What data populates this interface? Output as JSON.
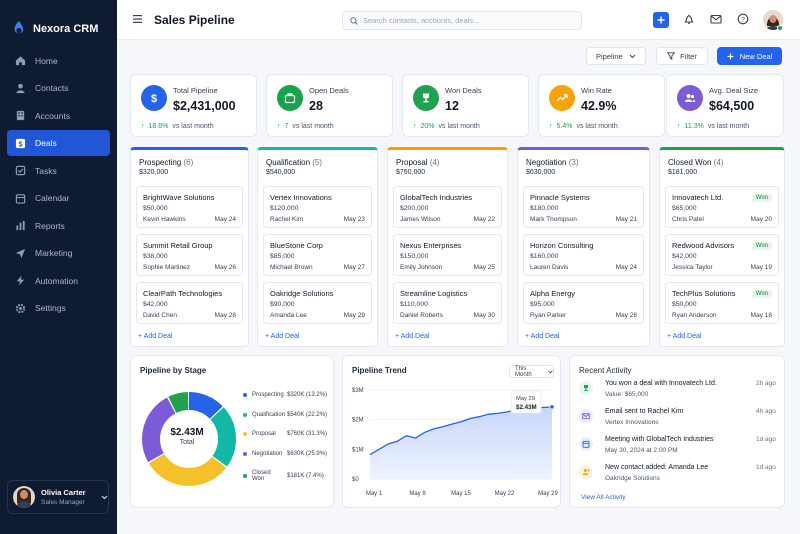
{
  "app": {
    "name": "Nexora CRM"
  },
  "nav": [
    {
      "label": "Home",
      "icon": "home-icon"
    },
    {
      "label": "Contacts",
      "icon": "user-icon"
    },
    {
      "label": "Accounts",
      "icon": "building-icon"
    },
    {
      "label": "Deals",
      "icon": "dollar-icon",
      "active": true
    },
    {
      "label": "Tasks",
      "icon": "check-square-icon"
    },
    {
      "label": "Calendar",
      "icon": "calendar-icon"
    },
    {
      "label": "Reports",
      "icon": "bar-chart-icon"
    },
    {
      "label": "Marketing",
      "icon": "send-icon"
    },
    {
      "label": "Automation",
      "icon": "zap-icon"
    },
    {
      "label": "Settings",
      "icon": "gear-icon"
    }
  ],
  "user": {
    "name": "Olivia Carter",
    "role": "Sales Manager"
  },
  "header": {
    "title": "Sales Pipeline",
    "search_placeholder": "Search contacts, accounts, deals..."
  },
  "toolbar": {
    "pipeline_label": "Pipeline",
    "filter_label": "Filter",
    "new_deal_label": "New Deal"
  },
  "kpis": [
    {
      "label": "Total Pipeline",
      "value": "$2,431,000",
      "change": "18.6%",
      "suffix": "vs last month",
      "color": "#2563eb",
      "icon": "dollar-icon"
    },
    {
      "label": "Open Deals",
      "value": "28",
      "change": "7",
      "suffix": "vs last month",
      "color": "#16a34a",
      "icon": "briefcase-icon"
    },
    {
      "label": "Won Deals",
      "value": "12",
      "change": "20%",
      "suffix": "vs last month",
      "color": "#22a150",
      "icon": "trophy-icon"
    },
    {
      "label": "Win Rate",
      "value": "42.9%",
      "change": "5.4%",
      "suffix": "vs last month",
      "color": "#f5a30b",
      "icon": "trend-icon"
    },
    {
      "label": "Avg. Deal Size",
      "value": "$64,500",
      "change": "11.3%",
      "suffix": "vs last month",
      "color": "#7c5cd6",
      "icon": "users-icon"
    }
  ],
  "stages": [
    {
      "name": "Prospecting",
      "count": "(6)",
      "amount": "$320,000",
      "color": "#2563eb",
      "deals": [
        {
          "name": "BrightWave Solutions",
          "value": "$50,000",
          "owner": "Kevin Hawkins",
          "date": "May 24"
        },
        {
          "name": "Summit Retail Group",
          "value": "$38,000",
          "owner": "Sophie Martinez",
          "date": "May 26"
        },
        {
          "name": "ClearPath Technologies",
          "value": "$42,000",
          "owner": "David Chen",
          "date": "May 28"
        }
      ]
    },
    {
      "name": "Qualification",
      "count": "(5)",
      "amount": "$540,000",
      "color": "#14b8a6",
      "deals": [
        {
          "name": "Vertex Innovations",
          "value": "$120,000",
          "owner": "Rachel Kim",
          "date": "May 23"
        },
        {
          "name": "BlueStone Corp",
          "value": "$85,000",
          "owner": "Michael Brown",
          "date": "May 27"
        },
        {
          "name": "Oakridge Solutions",
          "value": "$90,000",
          "owner": "Amanda Lee",
          "date": "May 29"
        }
      ]
    },
    {
      "name": "Proposal",
      "count": "(4)",
      "amount": "$760,000",
      "color": "#f59e0b",
      "deals": [
        {
          "name": "GlobalTech Industries",
          "value": "$200,000",
          "owner": "James Wilson",
          "date": "May 22"
        },
        {
          "name": "Nexus Enterprises",
          "value": "$150,000",
          "owner": "Emily Johnson",
          "date": "May 25"
        },
        {
          "name": "Streamline Logistics",
          "value": "$110,000",
          "owner": "Daniel Roberts",
          "date": "May 30"
        }
      ]
    },
    {
      "name": "Negotiation",
      "count": "(3)",
      "amount": "$630,000",
      "color": "#7c5cd6",
      "deals": [
        {
          "name": "Pinnacle Systems",
          "value": "$180,000",
          "owner": "Mark Thompson",
          "date": "May 21"
        },
        {
          "name": "Horizon Consulting",
          "value": "$160,000",
          "owner": "Lauren Davis",
          "date": "May 24"
        },
        {
          "name": "Alpha Energy",
          "value": "$95,000",
          "owner": "Ryan Parker",
          "date": "May 28"
        }
      ]
    },
    {
      "name": "Closed Won",
      "count": "(4)",
      "amount": "$181,000",
      "color": "#22a150",
      "badge": "Won",
      "deals": [
        {
          "name": "Innovatech Ltd.",
          "value": "$65,000",
          "owner": "Chris Patel",
          "date": "May 20"
        },
        {
          "name": "Redwood Advisors",
          "value": "$42,000",
          "owner": "Jessica Taylor",
          "date": "May 19"
        },
        {
          "name": "TechPlus Solutions",
          "value": "$50,000",
          "owner": "Ryan Anderson",
          "date": "May 18"
        }
      ]
    }
  ],
  "add_deal_label": "+ Add Deal",
  "donut": {
    "title": "Pipeline by Stage",
    "center_value": "$2.43M",
    "center_label": "Total",
    "items": [
      {
        "name": "Prospecting",
        "text": "$320K (13.2%)",
        "value": 13.2,
        "color": "#2563eb"
      },
      {
        "name": "Qualification",
        "text": "$540K (22.2%)",
        "value": 22.2,
        "color": "#14b8a6"
      },
      {
        "name": "Proposal",
        "text": "$760K (31.3%)",
        "value": 31.3,
        "color": "#f5c12b"
      },
      {
        "name": "Negotiation",
        "text": "$630K (25.9%)",
        "value": 25.9,
        "color": "#7c5cd6"
      },
      {
        "name": "Closed Won",
        "text": "$181K (7.4%)",
        "value": 7.4,
        "color": "#22a150"
      }
    ]
  },
  "chart_data": {
    "type": "area",
    "title": "Pipeline Trend",
    "filter": "This Month",
    "ylabels": [
      "$3M",
      "$2M",
      "$1M",
      "$0"
    ],
    "ylim": [
      0,
      3000000
    ],
    "xlabels": [
      "May 1",
      "May 8",
      "May 15",
      "May 22",
      "May 29"
    ],
    "series": [
      {
        "values": [
          820000,
          1000000,
          1180000,
          1270000,
          1460000,
          1380000,
          1570000,
          1690000,
          1760000,
          1850000,
          1930000,
          2040000,
          2100000,
          2180000,
          2210000,
          2260000,
          2320000,
          2350000,
          2380000,
          2410000,
          2431000
        ]
      }
    ],
    "tooltip": {
      "date": "May 29",
      "value": "$2.43M"
    }
  },
  "activity": {
    "title": "Recent Activity",
    "view_all": "View All Activity",
    "items": [
      {
        "title": "You won a deal with Innovatech Ltd.",
        "sub": "Value: $65,000",
        "time": "2h ago",
        "color": "#22a150",
        "bg": "#e7f6ec",
        "icon": "trophy-icon"
      },
      {
        "title": "Email sent to Rachel Kim",
        "sub": "Vertex Innovations",
        "time": "4h ago",
        "color": "#7c5cd6",
        "bg": "#efeafb",
        "icon": "mail-icon"
      },
      {
        "title": "Meeting with GlobalTech Industries",
        "sub": "May 30, 2024 at 2:00 PM",
        "time": "1d ago",
        "color": "#2563eb",
        "bg": "#e7effd",
        "icon": "calendar-icon"
      },
      {
        "title": "New contact added: Amanda Lee",
        "sub": "Oakridge Solutions",
        "time": "1d ago",
        "color": "#f59e0b",
        "bg": "#fdf2dc",
        "icon": "user-plus-icon"
      }
    ]
  }
}
